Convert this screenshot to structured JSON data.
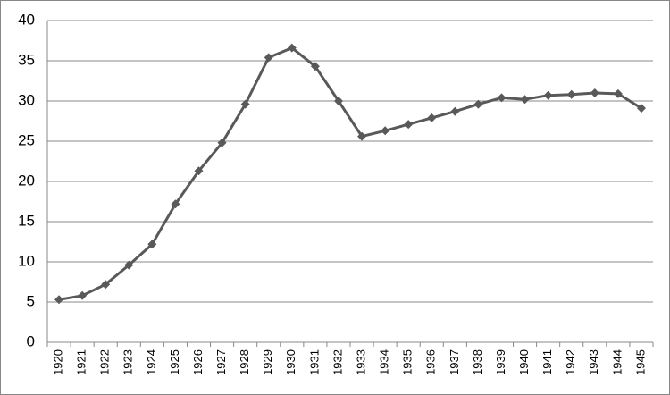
{
  "chart_data": {
    "type": "line",
    "categories": [
      "1920",
      "1921",
      "1922",
      "1923",
      "1924",
      "1925",
      "1926",
      "1927",
      "1928",
      "1929",
      "1930",
      "1931",
      "1932",
      "1933",
      "1934",
      "1935",
      "1936",
      "1937",
      "1938",
      "1939",
      "1940",
      "1941",
      "1942",
      "1943",
      "1944",
      "1945"
    ],
    "values": [
      5.3,
      5.8,
      7.2,
      9.6,
      12.2,
      17.2,
      21.3,
      24.8,
      29.6,
      35.4,
      36.6,
      34.3,
      30.0,
      25.6,
      26.3,
      27.1,
      27.9,
      28.7,
      29.6,
      30.4,
      30.2,
      30.7,
      30.8,
      31.0,
      30.9,
      29.1
    ],
    "color": "#595959",
    "ylim": [
      0,
      40
    ],
    "yticks": [
      0,
      5,
      10,
      15,
      20,
      25,
      30,
      35,
      40
    ],
    "grid": true
  }
}
